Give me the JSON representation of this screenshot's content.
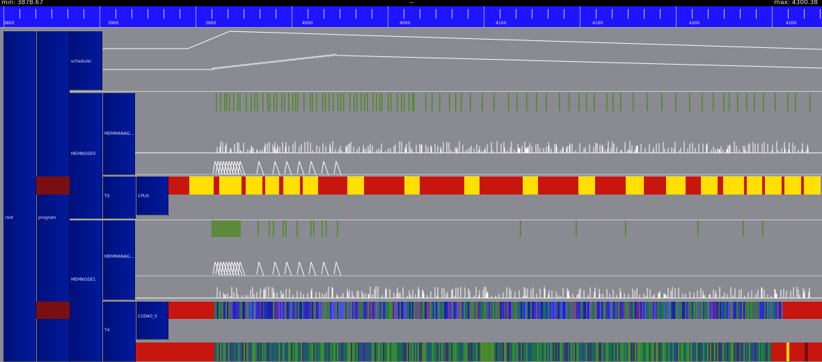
{
  "header": {
    "min_label": "min: 3878.67",
    "center_label": "--",
    "max_label": "max: 4300.38"
  },
  "ruler": {
    "labels": [
      "3800",
      "3900",
      "3900",
      "4000",
      "4000",
      "4100",
      "4100",
      "4200",
      "4200"
    ]
  },
  "tree": {
    "root": "root",
    "program": "program",
    "scheduler": "scheduler",
    "memnode0": "MEMNODE0",
    "memmanager0": "MEMMANAG...",
    "t0": "T0",
    "cpu0": "CPU0",
    "memnode1": "MEMNODE1",
    "memmanager1": "MEMMANAG...",
    "t4": "T4",
    "cuda0": "CUDA0_0"
  },
  "colors": {
    "background": "#8a8a92",
    "ruler": "#1e14ff",
    "node": "#001a9c",
    "task_red": "#c8160f",
    "task_yellow": "#ffe000",
    "event_green": "#4c8a1e",
    "trace_white": "#ffffff"
  }
}
